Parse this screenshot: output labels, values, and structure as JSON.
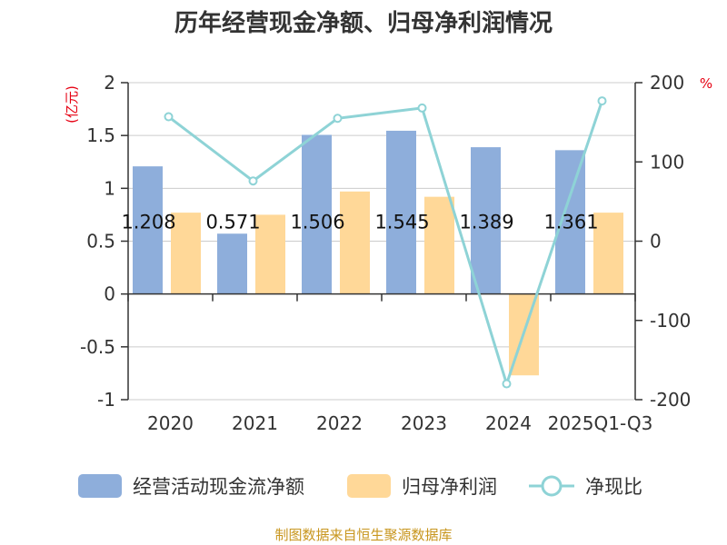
{
  "chart_data": {
    "type": "bar",
    "title": "历年经营现金净额、归母净利润情况",
    "categories": [
      "2020",
      "2021",
      "2022",
      "2023",
      "2024",
      "2025Q1-Q3"
    ],
    "series": [
      {
        "name": "经营活动现金流净额",
        "type": "bar",
        "axis": "left",
        "color": "#8eaedb",
        "values": [
          1.208,
          0.571,
          1.506,
          1.545,
          1.389,
          1.361
        ],
        "labels": [
          "1.208",
          "0.571",
          "1.506",
          "1.545",
          "1.389",
          "1.361"
        ]
      },
      {
        "name": "归母净利润",
        "type": "bar",
        "axis": "left",
        "color": "#ffd898",
        "values": [
          0.77,
          0.75,
          0.97,
          0.92,
          -0.77,
          0.77
        ]
      },
      {
        "name": "净现比",
        "type": "line",
        "axis": "right",
        "color": "#8ed3d6",
        "values": [
          157,
          76,
          155,
          168,
          -180,
          177
        ]
      }
    ],
    "left_axis": {
      "unit": "(亿元)",
      "ylim": [
        -1,
        2
      ],
      "ticks": [
        2,
        1.5,
        1,
        0.5,
        0,
        -0.5,
        -1
      ],
      "tick_labels": [
        "2",
        "1.5",
        "1",
        "0.5",
        "0",
        "-0.5",
        "-1"
      ]
    },
    "right_axis": {
      "unit": "%",
      "ylim": [
        -200,
        200
      ],
      "ticks": [
        200,
        100,
        0,
        -100,
        -200
      ],
      "tick_labels": [
        "200",
        "100",
        "0",
        "-100",
        "-200"
      ]
    },
    "grid": true,
    "legend_position": "bottom",
    "source": "制图数据来自恒生聚源数据库"
  }
}
